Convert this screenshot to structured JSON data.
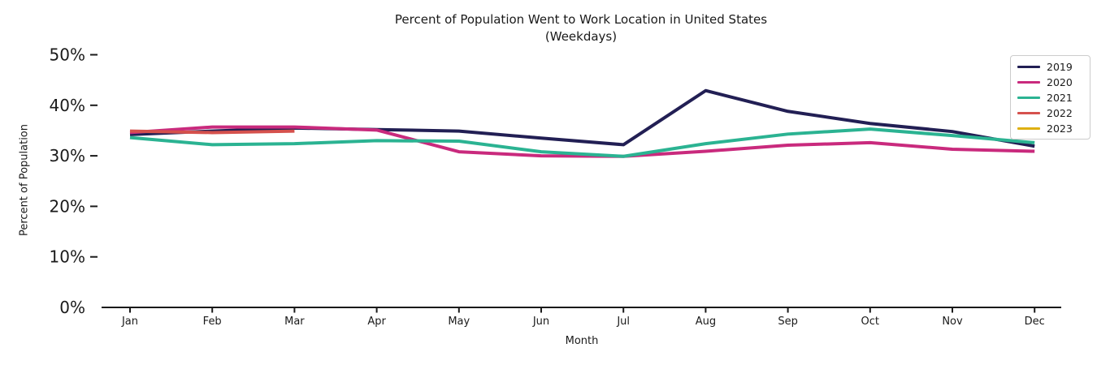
{
  "chart_data": {
    "type": "line",
    "title_line1": "Percent of Population Went to Work Location in United States",
    "title_line2": "(Weekdays)",
    "xlabel": "Month",
    "ylabel": "Percent of Population",
    "categories": [
      "Jan",
      "Feb",
      "Mar",
      "Apr",
      "May",
      "Jun",
      "Jul",
      "Aug",
      "Sep",
      "Oct",
      "Nov",
      "Dec"
    ],
    "ytick_labels": [
      "0%",
      "10%",
      "20%",
      "30%",
      "40%",
      "50%"
    ],
    "ytick_values": [
      0,
      10,
      20,
      30,
      40,
      50
    ],
    "ylim": [
      0,
      52
    ],
    "grid": false,
    "legend_position": "upper right",
    "series": [
      {
        "name": "2019",
        "color": "#221f54",
        "values": [
          34.2,
          34.9,
          35.5,
          35.2,
          34.9,
          33.5,
          32.2,
          42.9,
          38.8,
          36.4,
          34.8,
          31.9
        ]
      },
      {
        "name": "2020",
        "color": "#c92a7d",
        "values": [
          34.6,
          35.7,
          35.7,
          35.1,
          30.8,
          30.0,
          29.9,
          30.9,
          32.1,
          32.6,
          31.3,
          30.9
        ]
      },
      {
        "name": "2021",
        "color": "#2bb392",
        "values": [
          33.6,
          32.2,
          32.4,
          33.0,
          32.9,
          30.8,
          29.9,
          32.4,
          34.3,
          35.3,
          34.0,
          32.6
        ]
      },
      {
        "name": "2022",
        "color": "#d5514d",
        "values": [
          34.9,
          34.6,
          34.9
        ]
      },
      {
        "name": "2023",
        "color": "#deb012",
        "values": []
      }
    ]
  }
}
